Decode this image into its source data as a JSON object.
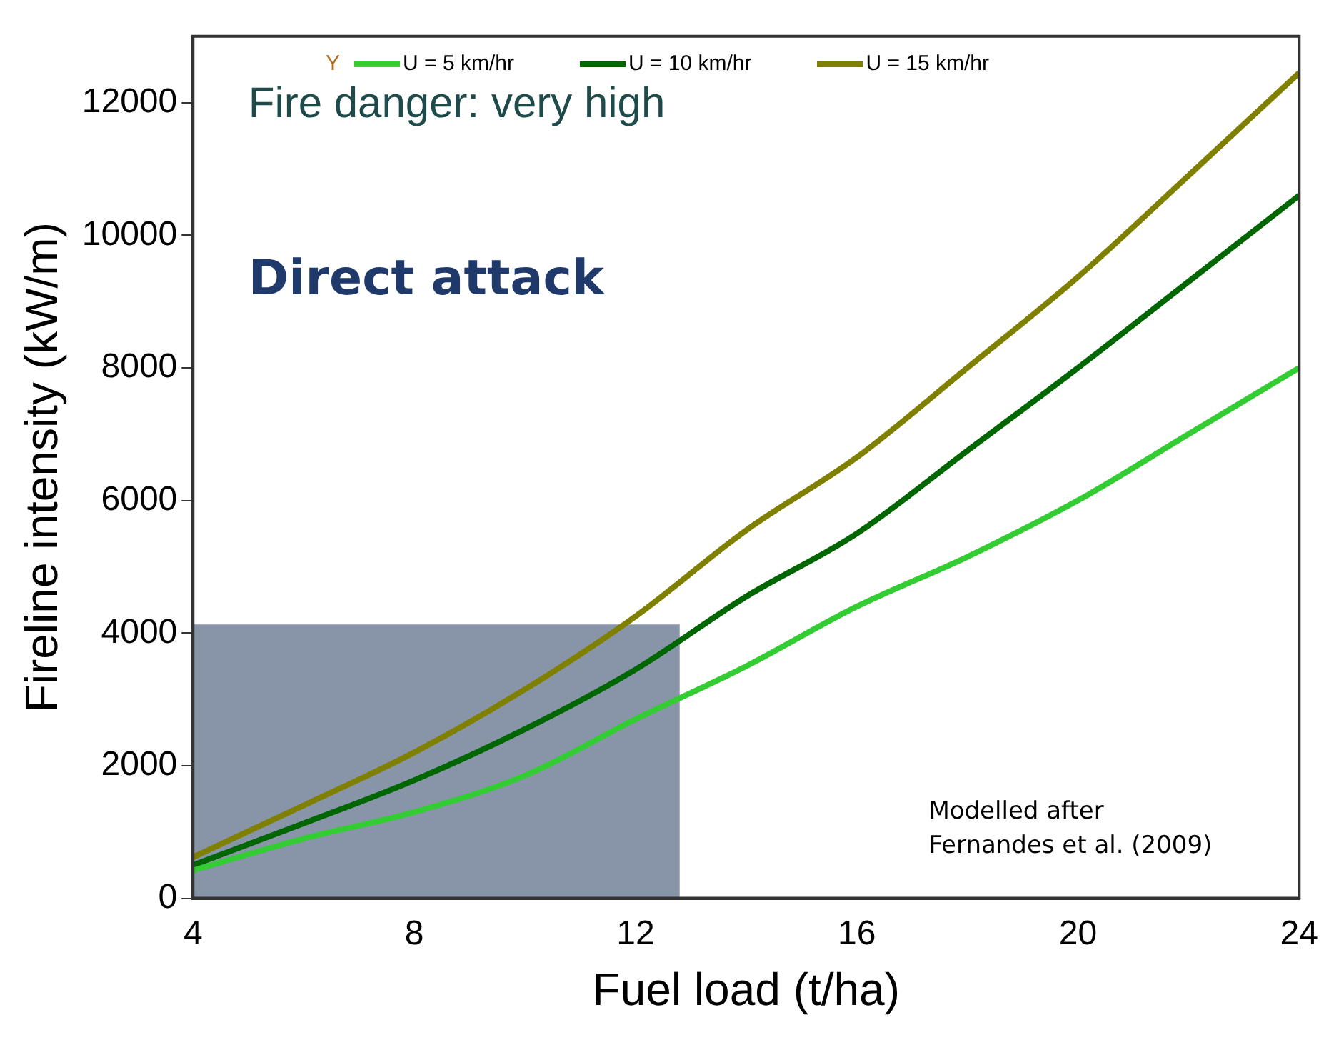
{
  "chart_data": {
    "type": "line",
    "xlabel": "Fuel load (t/ha)",
    "ylabel": "Fireline intensity (kW/m)",
    "legend_title": "Y",
    "x": [
      4,
      6,
      8,
      10,
      12,
      14,
      16,
      18,
      20,
      22,
      24
    ],
    "series": [
      {
        "name": "U = 5 km/hr",
        "color": "#33cc33",
        "values": [
          420,
          900,
          1300,
          1850,
          2700,
          3500,
          4400,
          5150,
          6000,
          7000,
          8000
        ]
      },
      {
        "name": "U = 10 km/hr",
        "color": "#006600",
        "values": [
          500,
          1130,
          1780,
          2550,
          3450,
          4550,
          5500,
          6750,
          8000,
          9300,
          10600
        ]
      },
      {
        "name": "U = 15 km/hr",
        "color": "#808000",
        "values": [
          620,
          1400,
          2200,
          3150,
          4250,
          5550,
          6650,
          8000,
          9370,
          10900,
          12450
        ]
      },
      {
        "type": "area",
        "color": "#7b89a0",
        "x": [
          4,
          12.8
        ],
        "values": [
          4130,
          4130
        ]
      }
    ],
    "xlim": [
      4,
      24
    ],
    "xticks": [
      4,
      8,
      12,
      16,
      20,
      24
    ],
    "ylim": [
      0,
      13000
    ],
    "yticks": [
      0,
      2000,
      4000,
      6000,
      8000,
      10000,
      12000
    ],
    "grid": false,
    "legend": "top",
    "marker": "none",
    "line_style": "solid",
    "annotations": [
      "Fire danger: very high",
      "Direct attack",
      "Modelled after\nFernandes et al. (2009)"
    ]
  }
}
